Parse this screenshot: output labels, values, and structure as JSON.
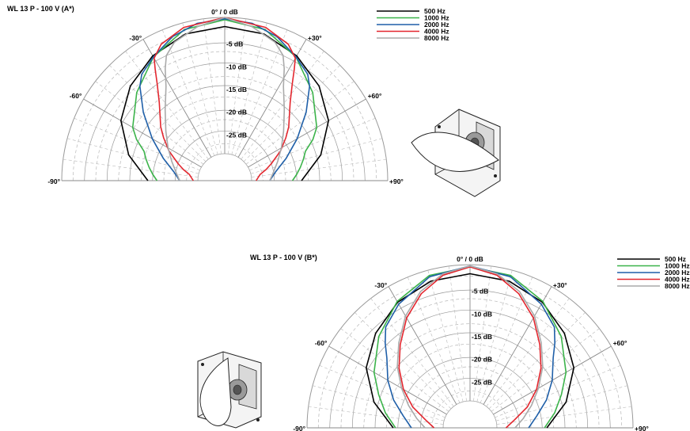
{
  "chart_data": [
    {
      "type": "polar",
      "title": "WL 13 P - 100 V (A*)",
      "angle_labels": [
        "-90°",
        "-60°",
        "-30°",
        "0° / 0 dB",
        "+30°",
        "+60°",
        "+90°"
      ],
      "radial_labels": [
        "-5 dB",
        "-10 dB",
        "-15 dB",
        "-20 dB",
        "-25 dB"
      ],
      "radial_range_db": [
        -30,
        0
      ],
      "angular_range_deg": [
        -90,
        90
      ],
      "legend_position": "top-right",
      "series": [
        {
          "name": "500 Hz",
          "color": "#000000",
          "angles": [
            0,
            15,
            30,
            45,
            60,
            75,
            90
          ],
          "db": [
            -2.0,
            -2.5,
            -4.2,
            -6.5,
            -9.5,
            -14.0,
            -19.0
          ]
        },
        {
          "name": "1000 Hz",
          "color": "#3bb34a",
          "angles": [
            0,
            15,
            30,
            45,
            60,
            65,
            70,
            75,
            80,
            85,
            90
          ],
          "db": [
            -0.5,
            -1.5,
            -4.5,
            -8.5,
            -12.5,
            -14.5,
            -17.0,
            -18.0,
            -19.0,
            -20.0,
            -21.0
          ]
        },
        {
          "name": "2000 Hz",
          "color": "#1f5fa8",
          "angles": [
            0,
            10,
            20,
            30,
            38,
            42,
            50,
            60,
            70,
            80,
            90
          ],
          "db": [
            -0.3,
            -0.8,
            -2.2,
            -4.5,
            -6.2,
            -8.0,
            -12.5,
            -17.5,
            -21.5,
            -24.5,
            -26.0
          ]
        },
        {
          "name": "4000 Hz",
          "color": "#e3262e",
          "angles": [
            0,
            15,
            25,
            30,
            32,
            35,
            40,
            50,
            55,
            62,
            70,
            75,
            80,
            90
          ],
          "db": [
            0.0,
            -1.0,
            -2.8,
            -4.8,
            -7.0,
            -10.0,
            -13.5,
            -17.5,
            -19.5,
            -22.0,
            -25.0,
            -26.5,
            -28.0,
            -29.0
          ]
        },
        {
          "name": "8000 Hz",
          "color": "#aaaaaa",
          "angles": [
            0,
            10,
            20,
            25,
            28,
            32,
            40,
            50,
            60,
            70,
            80,
            90
          ],
          "db": [
            0.0,
            -1.5,
            -3.5,
            -5.5,
            -8.0,
            -11.5,
            -15.5,
            -19.0,
            -21.5,
            -23.5,
            -25.0,
            -26.0
          ]
        }
      ]
    },
    {
      "type": "polar",
      "title": "WL 13 P - 100 V (B*)",
      "angle_labels": [
        "-90°",
        "-60°",
        "-30°",
        "0° / 0 dB",
        "+30°",
        "+60°",
        "+90°"
      ],
      "radial_labels": [
        "-5 dB",
        "-10 dB",
        "-15 dB",
        "-20 dB",
        "-25 dB"
      ],
      "radial_range_db": [
        -30,
        0
      ],
      "angular_range_deg": [
        -90,
        90
      ],
      "legend_position": "top-right",
      "series": [
        {
          "name": "500 Hz",
          "color": "#000000",
          "angles": [
            0,
            15,
            30,
            45,
            60,
            75,
            90
          ],
          "db": [
            -2.0,
            -2.5,
            -4.0,
            -6.5,
            -9.5,
            -14.0,
            -19.0
          ]
        },
        {
          "name": "1000 Hz",
          "color": "#3bb34a",
          "angles": [
            0,
            15,
            30,
            45,
            60,
            70,
            80,
            90
          ],
          "db": [
            -0.5,
            -1.2,
            -3.8,
            -7.5,
            -11.5,
            -14.5,
            -17.0,
            -19.5
          ]
        },
        {
          "name": "2000 Hz",
          "color": "#1f5fa8",
          "angles": [
            0,
            15,
            30,
            40,
            45,
            50,
            60,
            70,
            80,
            90
          ],
          "db": [
            -0.3,
            -1.5,
            -4.5,
            -7.0,
            -9.5,
            -12.0,
            -15.0,
            -18.0,
            -21.0,
            -23.0
          ]
        },
        {
          "name": "4000 Hz",
          "color": "#e3262e",
          "angles": [
            0,
            10,
            20,
            30,
            40,
            50,
            60,
            70,
            80,
            90
          ],
          "db": [
            -0.5,
            -1.8,
            -4.5,
            -8.0,
            -12.0,
            -15.5,
            -19.0,
            -22.5,
            -26.0,
            -28.0
          ]
        },
        {
          "name": "8000 Hz",
          "color": "#aaaaaa",
          "angles": [
            0,
            10,
            20,
            30,
            40,
            50,
            60,
            70,
            80,
            90
          ],
          "db": [
            -0.3,
            -1.5,
            -4.0,
            -7.5,
            -11.5,
            -15.0,
            -18.5,
            -21.5,
            -24.0,
            -26.0
          ]
        }
      ]
    }
  ]
}
